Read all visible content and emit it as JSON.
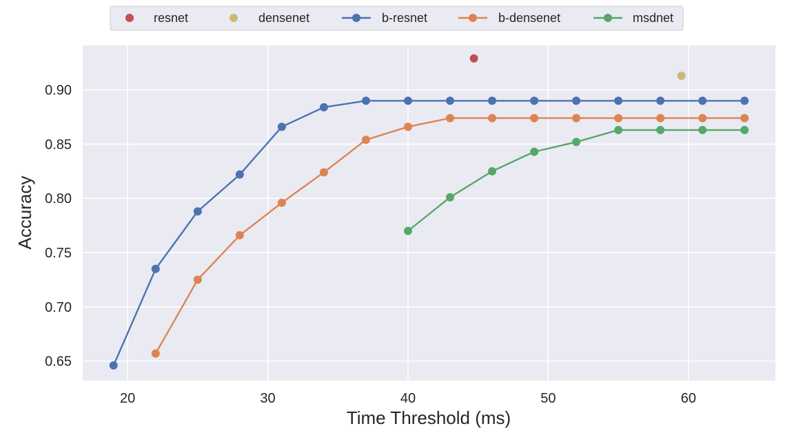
{
  "chart_data": {
    "type": "line",
    "title": "",
    "xlabel": "Time Threshold (ms)",
    "ylabel": "Accuracy",
    "xlim": [
      16.8,
      66.2
    ],
    "ylim": [
      0.632,
      0.941
    ],
    "xticks": [
      20,
      30,
      40,
      50,
      60
    ],
    "yticks": [
      0.65,
      0.7,
      0.75,
      0.8,
      0.85,
      0.9
    ],
    "xtick_labels": [
      "20",
      "30",
      "40",
      "50",
      "60"
    ],
    "ytick_labels": [
      "0.65",
      "0.70",
      "0.75",
      "0.80",
      "0.85",
      "0.90"
    ],
    "grid": true,
    "legend_placement": "top-center (outside plot)",
    "background_color": "#eaeaf2",
    "series": [
      {
        "name": "resnet",
        "mode": "markers",
        "color": "#c44e52",
        "x": [
          44.7
        ],
        "y": [
          0.929
        ]
      },
      {
        "name": "densenet",
        "mode": "markers",
        "color": "#ccb974",
        "x": [
          59.5
        ],
        "y": [
          0.913
        ]
      },
      {
        "name": "b-resnet",
        "mode": "lines+markers",
        "color": "#4c72b0",
        "x": [
          19,
          22,
          25,
          28,
          31,
          34,
          37,
          40,
          43,
          46,
          49,
          52,
          55,
          58,
          61,
          64
        ],
        "y": [
          0.646,
          0.735,
          0.788,
          0.822,
          0.866,
          0.884,
          0.89,
          0.89,
          0.89,
          0.89,
          0.89,
          0.89,
          0.89,
          0.89,
          0.89,
          0.89
        ]
      },
      {
        "name": "b-densenet",
        "mode": "lines+markers",
        "color": "#dd8452",
        "x": [
          22,
          25,
          28,
          31,
          34,
          37,
          40,
          43,
          46,
          49,
          52,
          55,
          58,
          61,
          64
        ],
        "y": [
          0.657,
          0.725,
          0.766,
          0.796,
          0.824,
          0.854,
          0.866,
          0.874,
          0.874,
          0.874,
          0.874,
          0.874,
          0.874,
          0.874,
          0.874
        ]
      },
      {
        "name": "msdnet",
        "mode": "lines+markers",
        "color": "#55a868",
        "x": [
          40,
          43,
          46,
          49,
          52,
          55,
          58,
          61,
          64
        ],
        "y": [
          0.77,
          0.801,
          0.825,
          0.843,
          0.852,
          0.863,
          0.863,
          0.863,
          0.863
        ]
      }
    ]
  }
}
